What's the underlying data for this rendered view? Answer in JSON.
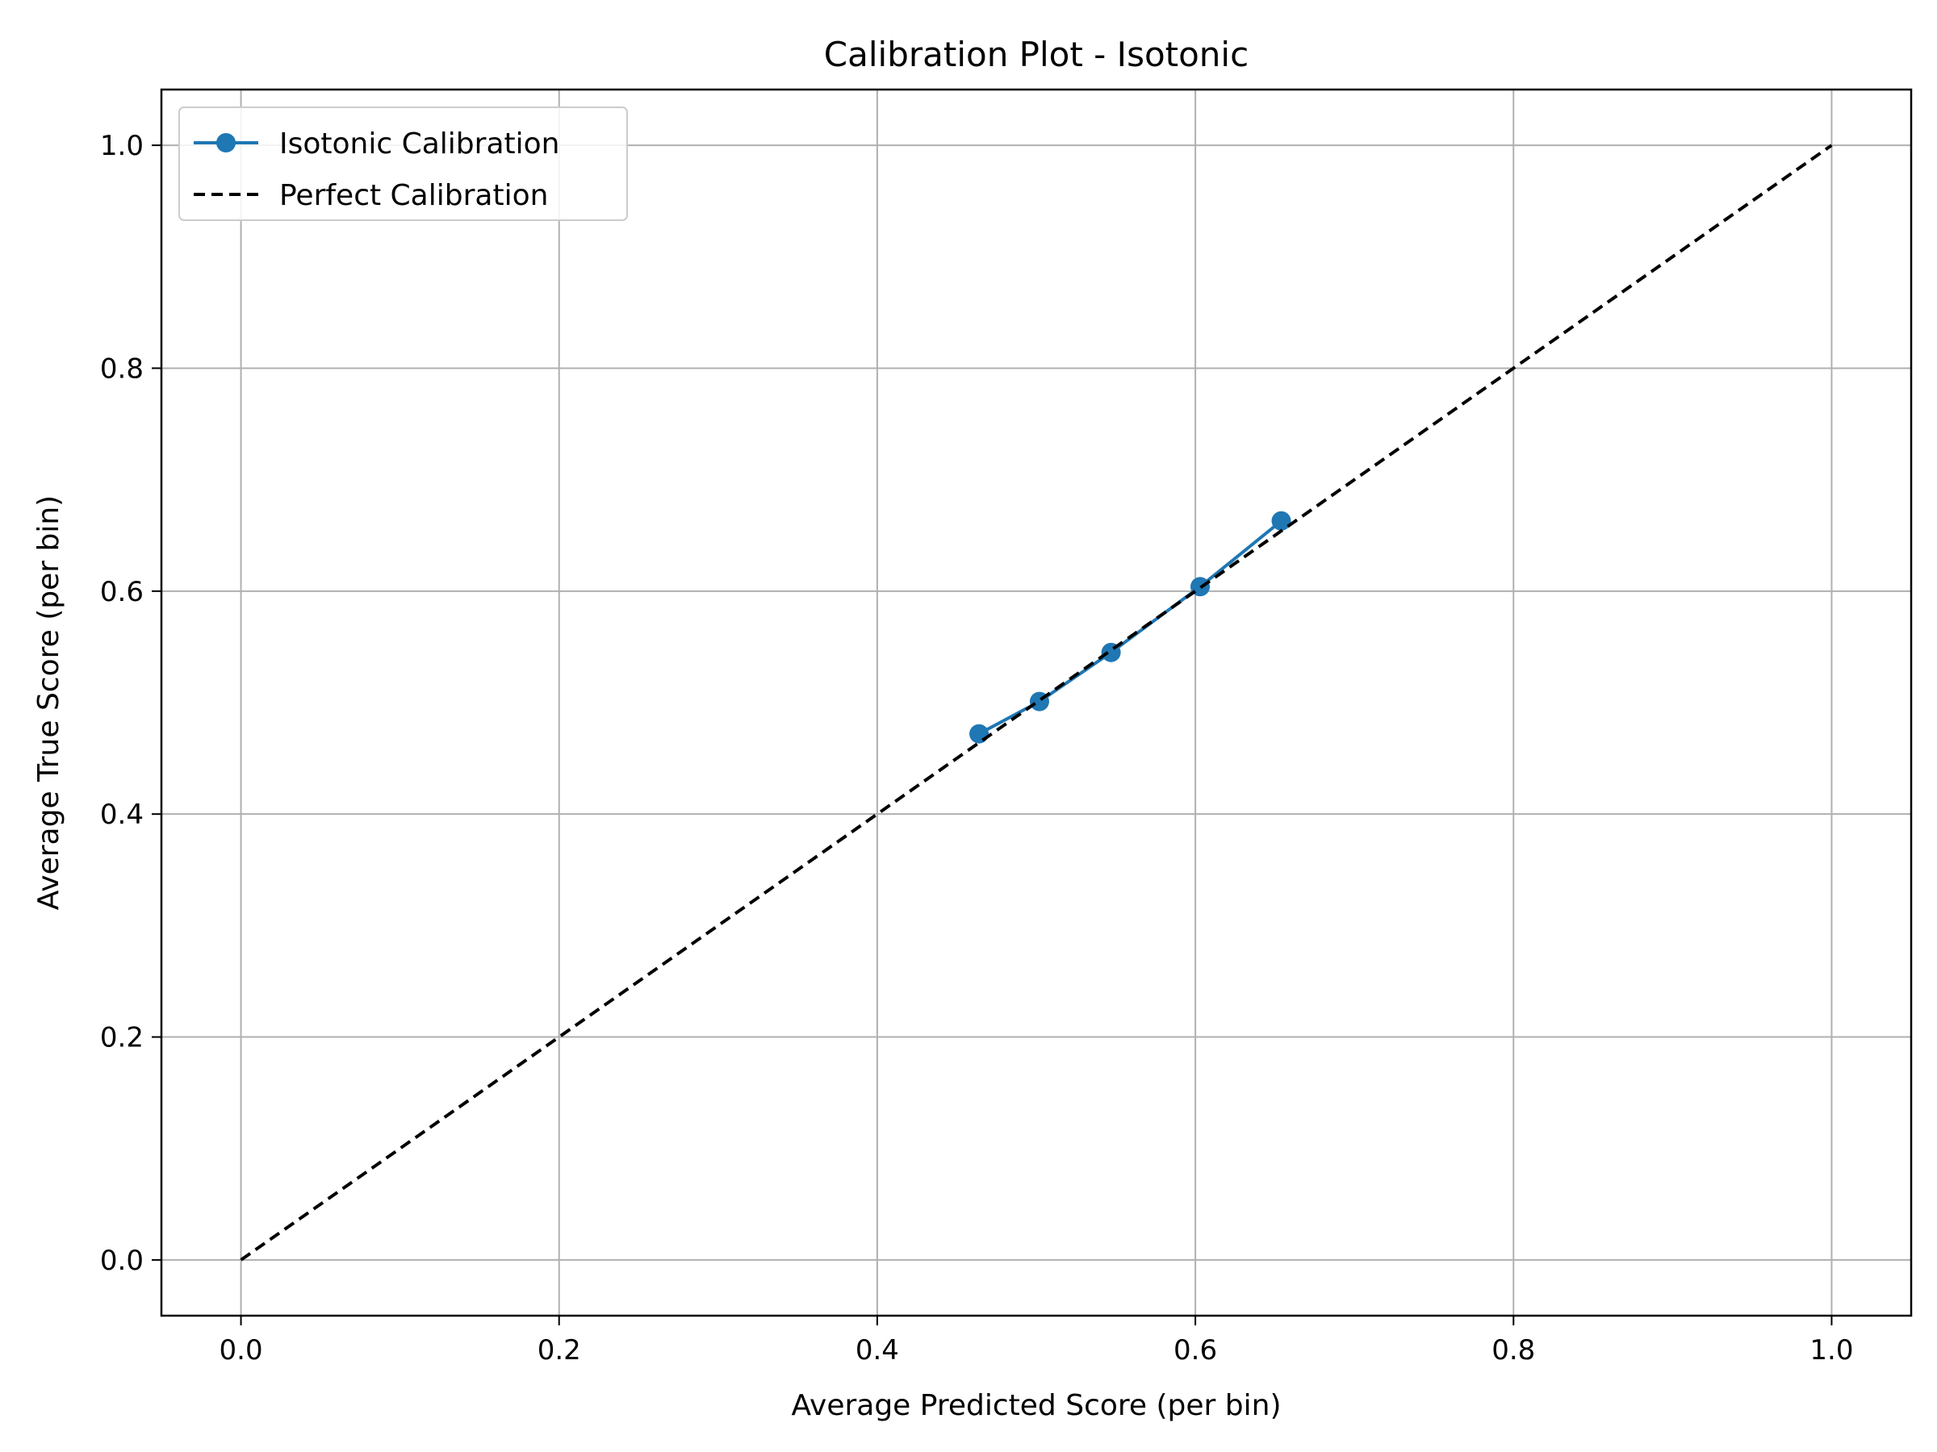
{
  "chart_data": {
    "type": "line",
    "title": "Calibration Plot - Isotonic",
    "xlabel": "Average Predicted Score (per bin)",
    "ylabel": "Average True Score (per bin)",
    "xlim": [
      -0.05,
      1.05
    ],
    "ylim": [
      -0.05,
      1.05
    ],
    "xticks": [
      0.0,
      0.2,
      0.4,
      0.6,
      0.8,
      1.0
    ],
    "yticks": [
      0.0,
      0.2,
      0.4,
      0.6,
      0.8,
      1.0
    ],
    "xtick_labels": [
      "0.0",
      "0.2",
      "0.4",
      "0.6",
      "0.8",
      "1.0"
    ],
    "ytick_labels": [
      "0.0",
      "0.2",
      "0.4",
      "0.6",
      "0.8",
      "1.0"
    ],
    "grid": true,
    "legend_position": "top-left",
    "series": [
      {
        "name": "Isotonic Calibration",
        "style": "solid-marker",
        "color": "#1f77b4",
        "x": [
          0.464,
          0.502,
          0.547,
          0.603,
          0.654
        ],
        "y": [
          0.472,
          0.501,
          0.545,
          0.604,
          0.663
        ]
      },
      {
        "name": "Perfect Calibration",
        "style": "dashed",
        "color": "#000000",
        "x": [
          0.0,
          1.0
        ],
        "y": [
          0.0,
          1.0
        ]
      }
    ]
  }
}
